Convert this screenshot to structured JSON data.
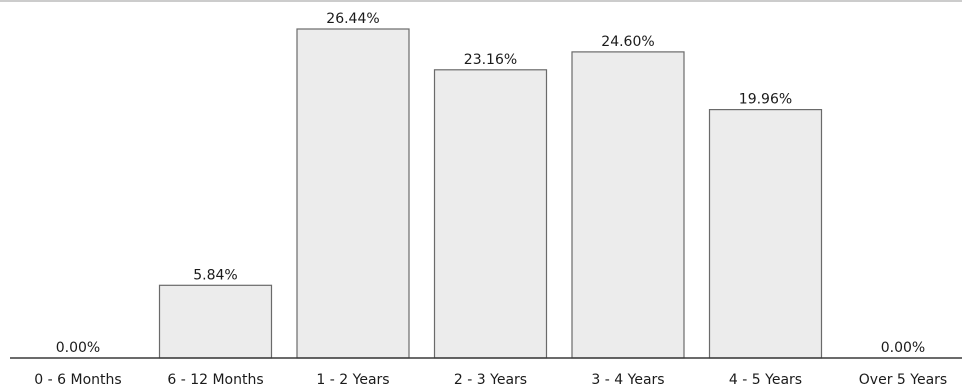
{
  "chart_data": {
    "type": "bar",
    "categories": [
      "0 - 6 Months",
      "6 - 12 Months",
      "1 - 2 Years",
      "2 - 3 Years",
      "3 - 4 Years",
      "4 - 5 Years",
      "Over 5 Years"
    ],
    "values": [
      0.0,
      5.84,
      26.44,
      23.16,
      24.6,
      19.96,
      0.0
    ],
    "data_labels": [
      "0.00%",
      "5.84%",
      "26.44%",
      "23.16%",
      "24.60%",
      "19.96%",
      "0.00%"
    ],
    "value_unit": "%",
    "title": "",
    "xlabel": "",
    "ylabel": "",
    "ylim": [
      0,
      26.44
    ],
    "grid": false,
    "legend": "none",
    "colors": {
      "bar_fill": "#ececec",
      "bar_stroke": "#6a6a6a",
      "baseline": "#3a3a3a",
      "text": "#1b1b1b"
    }
  }
}
